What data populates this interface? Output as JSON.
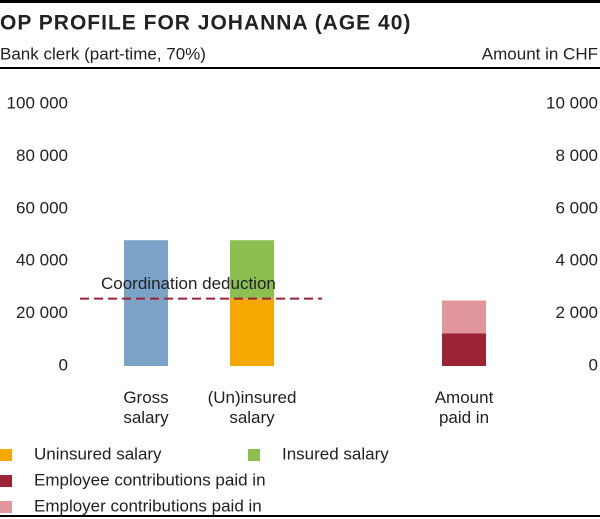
{
  "chart_data": {
    "type": "bar",
    "stacked": true,
    "title": "OP PROFILE FOR JOHANNA (AGE 40)",
    "subtitle": "Bank clerk (part-time, 70%)",
    "y_axis_label": "Amount in CHF",
    "categories": [
      "Gross salary",
      "(Un)insured salary",
      "Amount paid in"
    ],
    "series": [
      {
        "color": "#7ba3c8",
        "values": [
          48000,
          null,
          null
        ]
      },
      {
        "name": "Uninsured salary",
        "color": "#f5a800",
        "values": [
          null,
          25725,
          null
        ]
      },
      {
        "name": "Insured salary",
        "color": "#8cbf4f",
        "values": [
          null,
          22275,
          null
        ]
      },
      {
        "name": "Employee contributions paid in",
        "color": "#9b2335",
        "values": [
          null,
          null,
          1250
        ],
        "axis": "y2"
      },
      {
        "name": "Employer contributions paid in",
        "color": "#e0969a",
        "values": [
          null,
          null,
          1250
        ],
        "axis": "y2"
      }
    ],
    "ylim": [
      0,
      100000
    ],
    "yticks": [
      {
        "value": 0,
        "label": "0"
      },
      {
        "value": 20000,
        "label": "20 000"
      },
      {
        "value": 40000,
        "label": "40 000"
      },
      {
        "value": 60000,
        "label": "60 000"
      },
      {
        "value": 80000,
        "label": "80 000"
      },
      {
        "value": 100000,
        "label": "100 000"
      }
    ],
    "y2lim": [
      0,
      10000
    ],
    "y2ticks": [
      {
        "value": 0,
        "label": "0"
      },
      {
        "value": 2000,
        "label": "2 000"
      },
      {
        "value": 4000,
        "label": "4 000"
      },
      {
        "value": 6000,
        "label": "6 000"
      },
      {
        "value": 8000,
        "label": "8 000"
      },
      {
        "value": 10000,
        "label": "10 000"
      }
    ],
    "annotation": {
      "text": "Coordination deduction",
      "value": 25725,
      "color": "#9b2335"
    }
  }
}
